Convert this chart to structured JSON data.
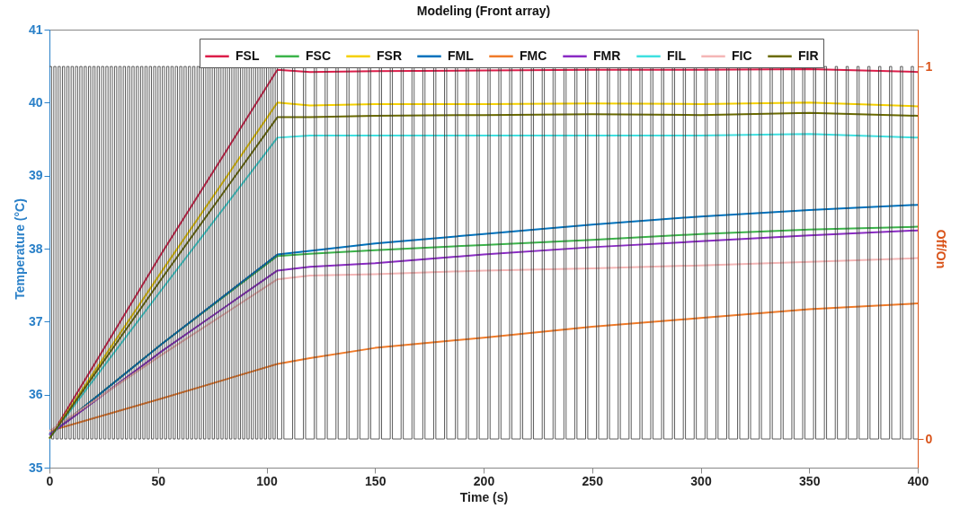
{
  "chart_data": {
    "type": "line",
    "title": "Modeling (Front array)",
    "xlabel": "Time (s)",
    "ylabel": "Temperature (°C)",
    "y2label": "Off/On",
    "x": [
      0,
      52,
      105,
      120,
      150,
      200,
      250,
      300,
      350,
      400
    ],
    "xlim": [
      0,
      400
    ],
    "xticks": [
      0,
      50,
      100,
      150,
      200,
      250,
      300,
      350,
      400
    ],
    "ylim": [
      35,
      41
    ],
    "yticks": [
      35,
      36,
      37,
      38,
      39,
      40,
      41
    ],
    "y2lim": [
      -0.077,
      1.099
    ],
    "y2ticks": [
      0,
      1
    ],
    "legend": "top",
    "series": [
      {
        "name": "FSL",
        "color": "#dc1e4a",
        "values": [
          35.4,
          37.95,
          40.45,
          40.42,
          40.43,
          40.44,
          40.45,
          40.45,
          40.46,
          40.42
        ]
      },
      {
        "name": "FSC",
        "color": "#3cb44b",
        "values": [
          35.45,
          36.7,
          37.9,
          37.93,
          37.98,
          38.05,
          38.12,
          38.2,
          38.26,
          38.3
        ]
      },
      {
        "name": "FSR",
        "color": "#f5d000",
        "values": [
          35.4,
          37.7,
          40.0,
          39.96,
          39.98,
          39.98,
          39.99,
          39.98,
          40.0,
          39.95
        ]
      },
      {
        "name": "FML",
        "color": "#0072bd",
        "values": [
          35.45,
          36.7,
          37.92,
          37.97,
          38.07,
          38.2,
          38.33,
          38.44,
          38.53,
          38.6
        ]
      },
      {
        "name": "FMC",
        "color": "#f07b2a",
        "values": [
          35.5,
          35.95,
          36.42,
          36.5,
          36.64,
          36.78,
          36.93,
          37.05,
          37.17,
          37.25
        ]
      },
      {
        "name": "FMR",
        "color": "#8a2bc4",
        "values": [
          35.45,
          36.6,
          37.7,
          37.75,
          37.8,
          37.92,
          38.02,
          38.1,
          38.18,
          38.25
        ]
      },
      {
        "name": "FIL",
        "color": "#40e0e0",
        "values": [
          35.4,
          37.45,
          39.52,
          39.55,
          39.55,
          39.55,
          39.55,
          39.55,
          39.57,
          39.52
        ]
      },
      {
        "name": "FIC",
        "color": "#f4b6b6",
        "values": [
          35.5,
          36.55,
          37.58,
          37.63,
          37.65,
          37.7,
          37.73,
          37.77,
          37.82,
          37.87
        ]
      },
      {
        "name": "FIR",
        "color": "#6b6b00",
        "values": [
          35.4,
          37.6,
          39.8,
          39.8,
          39.82,
          39.83,
          39.84,
          39.83,
          39.86,
          39.82
        ]
      },
      {
        "type": "step",
        "axis": "y2",
        "color": "#333333",
        "x": [
          0,
          1,
          2,
          3,
          4,
          5,
          6,
          7,
          8,
          9,
          10,
          11,
          12,
          13,
          14,
          15,
          16,
          17,
          18,
          19,
          20,
          21,
          22,
          23,
          24,
          25,
          26,
          27,
          28,
          29,
          30,
          31,
          32,
          33,
          34,
          35,
          36,
          37,
          38,
          39,
          40,
          41,
          42,
          43,
          44,
          45,
          46,
          47,
          48,
          49,
          50,
          51,
          52,
          53,
          54,
          55,
          56,
          57,
          58,
          59,
          60,
          61,
          62,
          63,
          64,
          65,
          66,
          67,
          68,
          69,
          70,
          71,
          72,
          73,
          74,
          75,
          76,
          77,
          78,
          79,
          80,
          81,
          82,
          83,
          84,
          85,
          86,
          87,
          88,
          89,
          90,
          91,
          92,
          93,
          94,
          95,
          96,
          97,
          98,
          99,
          100,
          101,
          102,
          103,
          104,
          105,
          107,
          108,
          112,
          113,
          117,
          118,
          122,
          123,
          127,
          128,
          132,
          133,
          137,
          138,
          142,
          143,
          147,
          148,
          152,
          153,
          157,
          158,
          162,
          163,
          167,
          168,
          172,
          173,
          177,
          178,
          182,
          183,
          187,
          188,
          192,
          193,
          197,
          198,
          202,
          203,
          207,
          208,
          212,
          213,
          217,
          218,
          222,
          223,
          227,
          228,
          232,
          233,
          237,
          238,
          242,
          243,
          247,
          248,
          252,
          253,
          257,
          258,
          262,
          263,
          267,
          268,
          272,
          273,
          277,
          278,
          282,
          283,
          287,
          288,
          292,
          293,
          297,
          298,
          302,
          303,
          307,
          308,
          312,
          313,
          317,
          318,
          322,
          323,
          327,
          328,
          332,
          333,
          337,
          338,
          342,
          343,
          347,
          348,
          352,
          353,
          357,
          358,
          362,
          363,
          367,
          368,
          372,
          373,
          377,
          378,
          382,
          383,
          387,
          388,
          392,
          393,
          397,
          398,
          400
        ],
        "values": [
          1,
          0,
          1,
          0,
          1,
          0,
          1,
          0,
          1,
          0,
          1,
          0,
          1,
          0,
          1,
          0,
          1,
          0,
          1,
          0,
          1,
          0,
          1,
          0,
          1,
          0,
          1,
          0,
          1,
          0,
          1,
          0,
          1,
          0,
          1,
          0,
          1,
          0,
          1,
          0,
          1,
          0,
          1,
          0,
          1,
          0,
          1,
          0,
          1,
          0,
          1,
          0,
          1,
          0,
          1,
          0,
          1,
          0,
          1,
          0,
          1,
          0,
          1,
          0,
          1,
          0,
          1,
          0,
          1,
          0,
          1,
          0,
          1,
          0,
          1,
          0,
          1,
          0,
          1,
          0,
          1,
          0,
          1,
          0,
          1,
          0,
          1,
          0,
          1,
          0,
          1,
          0,
          1,
          0,
          1,
          0,
          1,
          0,
          1,
          0,
          1,
          0,
          1,
          0,
          1,
          0,
          1,
          0,
          1,
          0,
          1,
          0,
          1,
          0,
          1,
          0,
          1,
          0,
          1,
          0,
          1,
          0,
          1,
          0,
          1,
          0,
          1,
          0,
          1,
          0,
          1,
          0,
          1,
          0,
          1,
          0,
          1,
          0,
          1,
          0,
          1,
          0,
          1,
          0,
          1,
          0,
          1,
          0,
          1,
          0,
          1,
          0,
          1,
          0,
          1,
          0,
          1,
          0,
          1,
          0,
          1,
          0,
          1,
          0,
          1,
          0,
          1,
          0,
          1,
          0,
          1,
          0,
          1,
          0,
          1,
          0,
          1,
          0,
          1,
          0,
          1,
          0,
          1,
          0,
          1,
          0,
          1,
          0,
          1,
          0,
          1,
          0,
          1,
          0,
          1,
          0,
          1,
          0,
          1,
          0,
          1,
          0,
          1,
          0,
          1,
          0,
          1,
          0,
          1,
          0,
          1,
          0,
          1,
          0,
          1,
          0,
          1,
          0,
          1,
          0,
          1,
          0,
          1,
          0,
          0
        ]
      }
    ]
  }
}
